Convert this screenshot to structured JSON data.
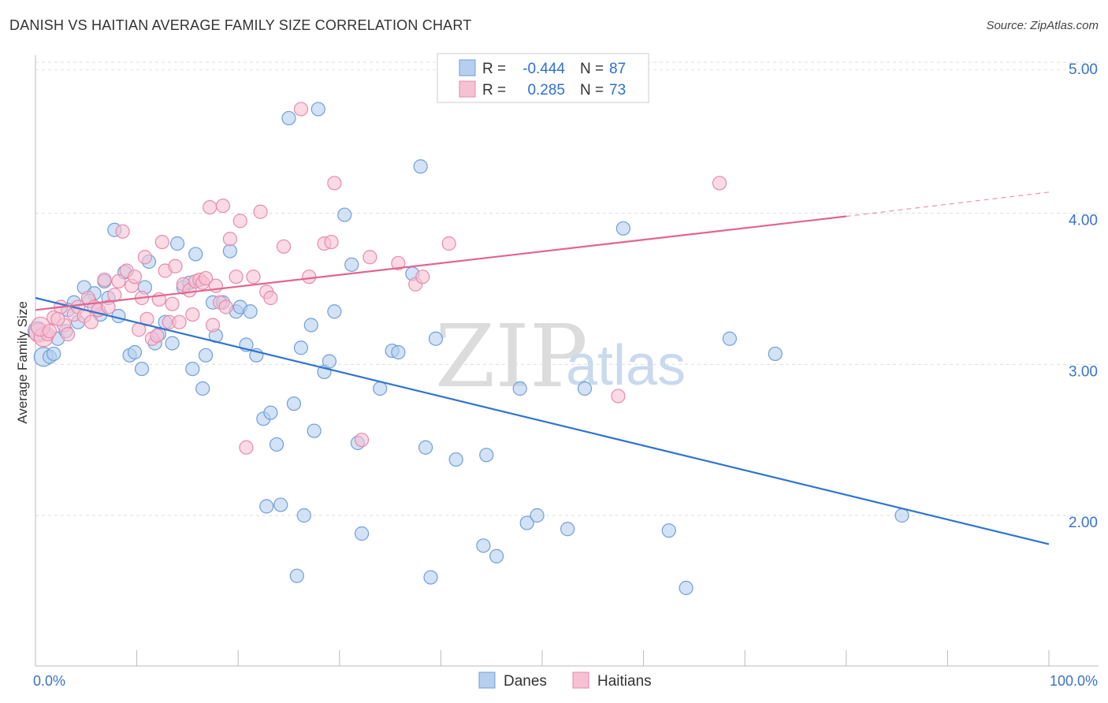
{
  "title": "DANISH VS HAITIAN AVERAGE FAMILY SIZE CORRELATION CHART",
  "source": "Source: ZipAtlas.com",
  "watermark": {
    "zip": "ZIP",
    "atlas": "atlas"
  },
  "chart_data": {
    "type": "scatter",
    "title": "DANISH VS HAITIAN AVERAGE FAMILY SIZE CORRELATION CHART",
    "xlabel": "",
    "ylabel": "Average Family Size",
    "xlim": [
      0,
      100
    ],
    "ylim": [
      1.0,
      5.05
    ],
    "x_tick_labels": [
      "0.0%",
      "100.0%"
    ],
    "y_ticks": [
      2.0,
      3.0,
      4.0,
      5.0
    ],
    "y_tick_labels": [
      "2.00",
      "3.00",
      "4.00",
      "5.00"
    ],
    "grid": true,
    "legend": {
      "position": "top-center",
      "entries": [
        {
          "r_label": "R =",
          "r": "-0.444",
          "n_label": "N =",
          "n": "87"
        },
        {
          "r_label": "R =",
          "r": "0.285",
          "n_label": "N =",
          "n": "73"
        }
      ]
    },
    "bottom_legend": [
      "Danes",
      "Haitians"
    ],
    "series": [
      {
        "name": "Danes",
        "color": "#6f9fd8",
        "fill": "#b6cfee",
        "line_color": "#2f74d0",
        "trend": {
          "x": [
            0,
            100
          ],
          "y": [
            3.44,
            1.81
          ]
        },
        "points": [
          [
            0.2,
            3.22
          ],
          [
            0.8,
            3.05
          ],
          [
            1.4,
            3.05
          ],
          [
            1.8,
            3.07
          ],
          [
            2.2,
            3.17
          ],
          [
            3.0,
            3.22
          ],
          [
            3.8,
            3.41
          ],
          [
            4.2,
            3.28
          ],
          [
            4.8,
            3.51
          ],
          [
            5.8,
            3.47
          ],
          [
            6.2,
            3.36
          ],
          [
            6.8,
            3.55
          ],
          [
            7.2,
            3.44
          ],
          [
            7.8,
            3.89
          ],
          [
            8.2,
            3.32
          ],
          [
            8.8,
            3.61
          ],
          [
            9.3,
            3.06
          ],
          [
            9.8,
            3.08
          ],
          [
            10.5,
            2.97
          ],
          [
            10.8,
            3.51
          ],
          [
            11.2,
            3.68
          ],
          [
            11.8,
            3.14
          ],
          [
            12.2,
            3.2
          ],
          [
            12.8,
            3.28
          ],
          [
            13.5,
            3.14
          ],
          [
            14.0,
            3.8
          ],
          [
            14.6,
            3.51
          ],
          [
            15.2,
            3.54
          ],
          [
            15.5,
            2.97
          ],
          [
            15.8,
            3.73
          ],
          [
            16.5,
            2.84
          ],
          [
            16.8,
            3.06
          ],
          [
            17.5,
            3.41
          ],
          [
            17.8,
            3.19
          ],
          [
            18.5,
            3.41
          ],
          [
            19.2,
            3.75
          ],
          [
            19.8,
            3.35
          ],
          [
            20.2,
            3.38
          ],
          [
            20.8,
            3.13
          ],
          [
            21.2,
            3.35
          ],
          [
            21.8,
            3.06
          ],
          [
            22.5,
            2.64
          ],
          [
            22.8,
            2.06
          ],
          [
            23.2,
            2.68
          ],
          [
            23.8,
            2.47
          ],
          [
            24.2,
            2.07
          ],
          [
            25.0,
            4.63
          ],
          [
            25.5,
            2.74
          ],
          [
            25.8,
            1.6
          ],
          [
            26.2,
            3.11
          ],
          [
            26.5,
            2.0
          ],
          [
            27.2,
            3.26
          ],
          [
            27.5,
            2.56
          ],
          [
            27.9,
            4.69
          ],
          [
            28.5,
            2.95
          ],
          [
            29.0,
            3.02
          ],
          [
            29.5,
            3.35
          ],
          [
            30.5,
            3.99
          ],
          [
            31.2,
            3.66
          ],
          [
            31.8,
            2.48
          ],
          [
            32.2,
            1.88
          ],
          [
            34.0,
            2.84
          ],
          [
            35.2,
            3.09
          ],
          [
            35.8,
            3.08
          ],
          [
            37.2,
            3.6
          ],
          [
            38.0,
            4.31
          ],
          [
            38.5,
            2.45
          ],
          [
            39.0,
            1.59
          ],
          [
            39.5,
            3.17
          ],
          [
            41.5,
            2.37
          ],
          [
            44.2,
            1.8
          ],
          [
            44.5,
            2.4
          ],
          [
            45.5,
            1.73
          ],
          [
            47.8,
            2.84
          ],
          [
            48.5,
            1.95
          ],
          [
            49.5,
            2.0
          ],
          [
            52.5,
            1.91
          ],
          [
            54.2,
            2.84
          ],
          [
            58.0,
            3.9
          ],
          [
            62.5,
            1.9
          ],
          [
            64.2,
            1.52
          ],
          [
            68.5,
            3.17
          ],
          [
            73.0,
            3.07
          ],
          [
            85.5,
            2.0
          ],
          [
            3.2,
            3.36
          ],
          [
            5.3,
            3.42
          ],
          [
            6.4,
            3.33
          ]
        ]
      },
      {
        "name": "Haitians",
        "color": "#e88aa8",
        "fill": "#f6c1d3",
        "line_color": "#e2648f",
        "trend": {
          "x": [
            0,
            80
          ],
          "y": [
            3.36,
            3.98
          ],
          "dashed_to": {
            "x": 100,
            "y": 4.14
          }
        },
        "points": [
          [
            0.3,
            3.21
          ],
          [
            0.8,
            3.18
          ],
          [
            1.2,
            3.2
          ],
          [
            1.8,
            3.31
          ],
          [
            2.5,
            3.38
          ],
          [
            2.8,
            3.26
          ],
          [
            3.2,
            3.2
          ],
          [
            3.8,
            3.33
          ],
          [
            4.2,
            3.38
          ],
          [
            4.8,
            3.32
          ],
          [
            5.2,
            3.44
          ],
          [
            5.5,
            3.28
          ],
          [
            5.8,
            3.38
          ],
          [
            6.2,
            3.36
          ],
          [
            6.8,
            3.56
          ],
          [
            7.2,
            3.38
          ],
          [
            7.8,
            3.46
          ],
          [
            8.2,
            3.55
          ],
          [
            8.6,
            3.88
          ],
          [
            9.0,
            3.62
          ],
          [
            9.5,
            3.52
          ],
          [
            9.8,
            3.58
          ],
          [
            10.2,
            3.23
          ],
          [
            10.5,
            3.44
          ],
          [
            10.8,
            3.71
          ],
          [
            11.0,
            3.3
          ],
          [
            11.5,
            3.17
          ],
          [
            12.0,
            3.19
          ],
          [
            12.2,
            3.43
          ],
          [
            12.5,
            3.81
          ],
          [
            12.8,
            3.62
          ],
          [
            13.2,
            3.28
          ],
          [
            13.5,
            3.4
          ],
          [
            13.8,
            3.65
          ],
          [
            14.2,
            3.28
          ],
          [
            14.6,
            3.53
          ],
          [
            15.2,
            3.49
          ],
          [
            15.5,
            3.33
          ],
          [
            15.8,
            3.55
          ],
          [
            16.2,
            3.56
          ],
          [
            16.5,
            3.54
          ],
          [
            16.8,
            3.57
          ],
          [
            17.2,
            4.04
          ],
          [
            17.5,
            3.26
          ],
          [
            17.8,
            3.52
          ],
          [
            18.2,
            3.41
          ],
          [
            18.5,
            4.05
          ],
          [
            18.8,
            3.38
          ],
          [
            19.2,
            3.83
          ],
          [
            19.8,
            3.58
          ],
          [
            20.2,
            3.95
          ],
          [
            20.8,
            2.45
          ],
          [
            21.5,
            3.58
          ],
          [
            22.2,
            4.01
          ],
          [
            22.8,
            3.48
          ],
          [
            23.2,
            3.44
          ],
          [
            24.5,
            3.78
          ],
          [
            26.2,
            4.69
          ],
          [
            27.0,
            3.58
          ],
          [
            28.5,
            3.8
          ],
          [
            29.2,
            3.81
          ],
          [
            29.5,
            4.2
          ],
          [
            32.2,
            2.5
          ],
          [
            33.0,
            3.71
          ],
          [
            35.8,
            3.67
          ],
          [
            37.5,
            3.53
          ],
          [
            38.2,
            3.58
          ],
          [
            40.8,
            3.8
          ],
          [
            57.5,
            2.79
          ],
          [
            67.5,
            4.2
          ],
          [
            0.5,
            3.25
          ],
          [
            1.4,
            3.22
          ],
          [
            2.2,
            3.3
          ]
        ]
      }
    ]
  }
}
